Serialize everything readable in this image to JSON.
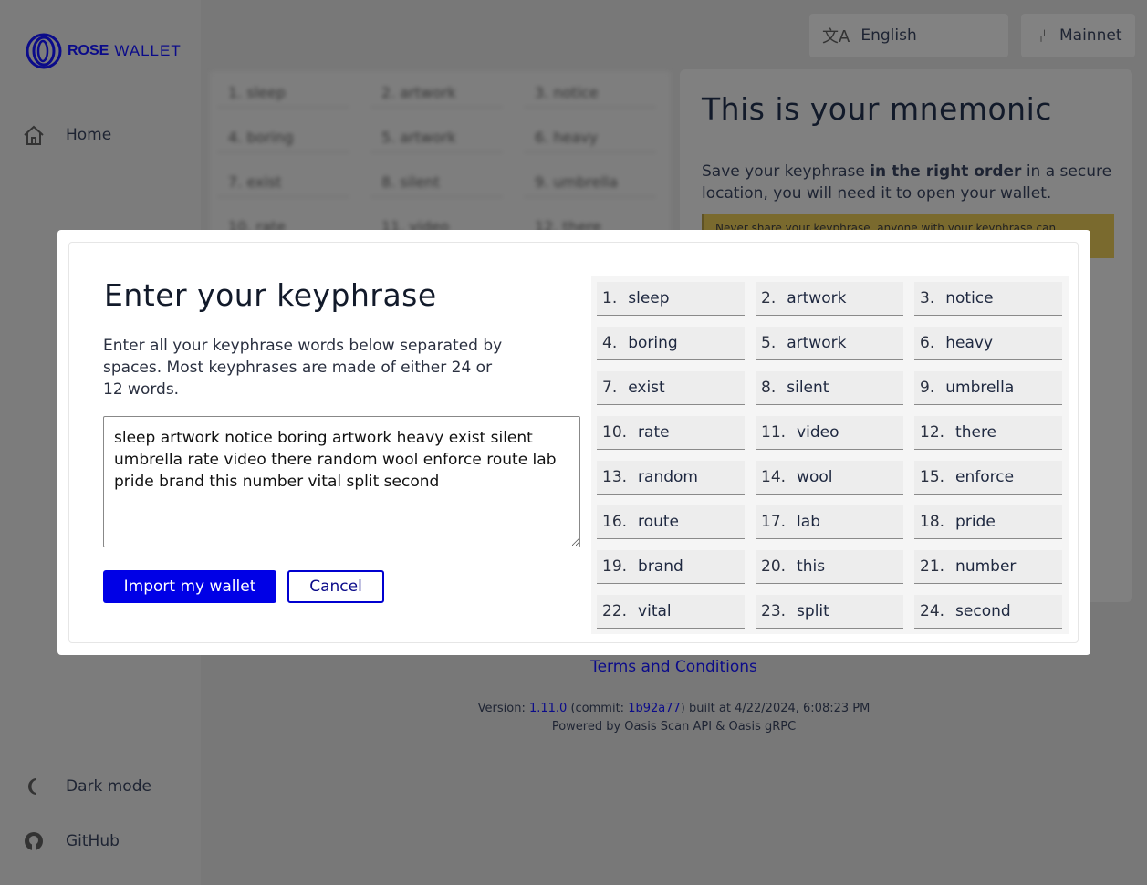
{
  "app": {
    "logo_bold": "ROSE",
    "logo_light": "WALLET"
  },
  "sidebar": {
    "items": [
      {
        "label": "Home",
        "icon": "home-icon"
      },
      {
        "label": "Dark mode",
        "icon": "moon-icon"
      },
      {
        "label": "GitHub",
        "icon": "github-icon"
      }
    ]
  },
  "header": {
    "language": "English",
    "network": "Mainnet"
  },
  "background_card": {
    "title": "This is your mnemonic",
    "text_pre": "Save your keyphrase ",
    "text_bold": "in the right order",
    "text_post": " in a secure location, you will need it to open your wallet.",
    "warning": "Never share your keyphrase, anyone with your keyphrase can"
  },
  "footer": {
    "terms": "Terms and Conditions",
    "version_label": "Version: ",
    "version": "1.11.0",
    "commit_label": " (commit: ",
    "commit": "1b92a77",
    "built": ") built at 4/22/2024, 6:08:23 PM",
    "powered": "Powered by Oasis Scan API & Oasis gRPC"
  },
  "modal": {
    "title": "Enter your keyphrase",
    "description": "Enter all your keyphrase words below separated by spaces. Most keyphrases are made of either 24 or 12 words.",
    "textarea_value": "sleep artwork notice boring artwork heavy exist silent umbrella rate video there random wool enforce route lab pride brand this number vital split second",
    "import_label": "Import my wallet",
    "cancel_label": "Cancel",
    "words": [
      "sleep",
      "artwork",
      "notice",
      "boring",
      "artwork",
      "heavy",
      "exist",
      "silent",
      "umbrella",
      "rate",
      "video",
      "there",
      "random",
      "wool",
      "enforce",
      "route",
      "lab",
      "pride",
      "brand",
      "this",
      "number",
      "vital",
      "split",
      "second"
    ]
  },
  "colors": {
    "accent": "#0000e6",
    "brand": "#0b0b8a",
    "warning": "#7a6a2e"
  }
}
